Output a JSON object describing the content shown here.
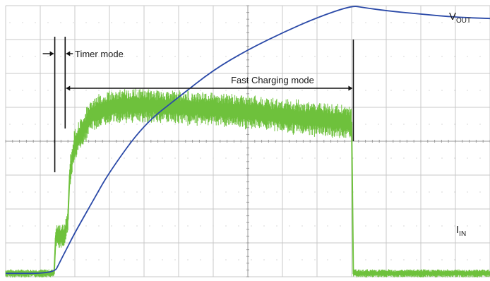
{
  "chart_data": {
    "type": "line",
    "title": "",
    "xlabel": "",
    "ylabel": "",
    "grid": true,
    "grid_divisions": {
      "x": 14,
      "y": 8
    },
    "xlim": [
      0,
      14
    ],
    "ylim": [
      0,
      8
    ],
    "series": [
      {
        "name": "VOUT",
        "label_main": "V",
        "label_sub": "OUT",
        "color": "#2b4aa8",
        "x": [
          0,
          1.4,
          1.55,
          1.7,
          2.0,
          2.5,
          3.0,
          4.0,
          5.0,
          6.0,
          7.0,
          8.0,
          9.0,
          10.0,
          10.3,
          11.0,
          12.0,
          13.0,
          14.0
        ],
        "y": [
          0.1,
          0.1,
          0.4,
          0.7,
          1.3,
          2.2,
          3.1,
          4.5,
          5.3,
          6.1,
          6.7,
          7.2,
          7.65,
          8.0,
          7.95,
          7.85,
          7.75,
          7.66,
          7.62
        ]
      },
      {
        "name": "IIN",
        "label_main": "I",
        "label_sub": "IN",
        "color": "#6ec13c",
        "x": [
          0,
          1.4,
          1.45,
          1.7,
          1.8,
          1.85,
          2.0,
          2.5,
          3.0,
          3.5,
          4.0,
          5.0,
          6.0,
          7.0,
          8.0,
          9.0,
          10.0,
          10.05,
          11.0,
          12.0,
          13.0,
          14.0
        ],
        "y": [
          0.1,
          0.1,
          1.2,
          1.2,
          1.7,
          3.0,
          3.9,
          4.8,
          5.0,
          5.05,
          5.05,
          5.0,
          4.95,
          4.85,
          4.75,
          4.65,
          4.55,
          0.1,
          0.1,
          0.1,
          0.1,
          0.1
        ]
      }
    ],
    "annotations": [
      {
        "text": "Timer mode",
        "start": 1.42,
        "end": 1.72
      },
      {
        "text": "Fast Charging mode",
        "start": 1.72,
        "end": 10.05
      }
    ]
  }
}
